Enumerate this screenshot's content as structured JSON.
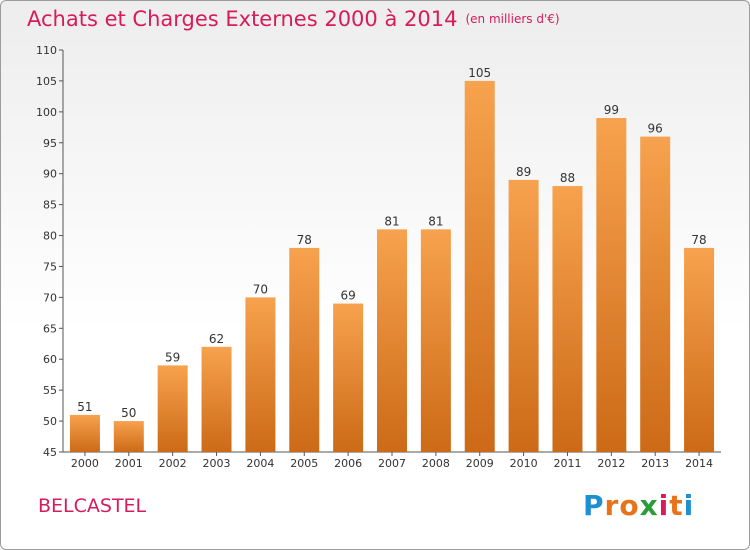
{
  "title": "Achats et Charges Externes 2000 à 2014",
  "unit": "(en milliers d'€)",
  "place": "BELCASTEL",
  "logo": "Proxiti",
  "colors": {
    "title": "#d81b5a",
    "bar_top": "#f7a24e",
    "bar_bottom": "#cc6a17",
    "axis": "#555555"
  },
  "chart_data": {
    "type": "bar",
    "categories": [
      "2000",
      "2001",
      "2002",
      "2003",
      "2004",
      "2005",
      "2006",
      "2007",
      "2008",
      "2009",
      "2010",
      "2011",
      "2012",
      "2013",
      "2014"
    ],
    "values": [
      51,
      50,
      59,
      62,
      70,
      78,
      69,
      81,
      81,
      105,
      89,
      88,
      99,
      96,
      78
    ],
    "title": "Achats et Charges Externes 2000 à 2014",
    "ylabel": "",
    "xlabel": "",
    "ylim": [
      45,
      110
    ],
    "yticks": [
      45,
      50,
      55,
      60,
      65,
      70,
      75,
      80,
      85,
      90,
      95,
      100,
      105,
      110
    ],
    "grid": false,
    "legend": "none"
  }
}
